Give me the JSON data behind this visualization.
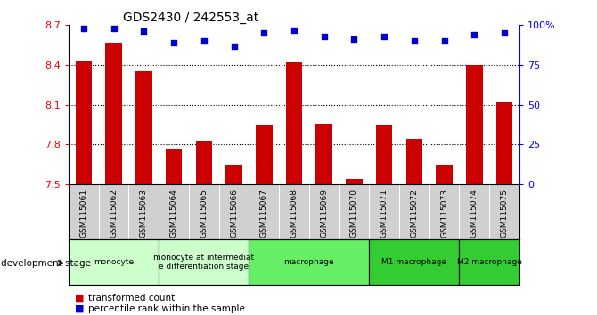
{
  "title": "GDS2430 / 242553_at",
  "samples": [
    "GSM115061",
    "GSM115062",
    "GSM115063",
    "GSM115064",
    "GSM115065",
    "GSM115066",
    "GSM115067",
    "GSM115068",
    "GSM115069",
    "GSM115070",
    "GSM115071",
    "GSM115072",
    "GSM115073",
    "GSM115074",
    "GSM115075"
  ],
  "bar_values": [
    8.43,
    8.57,
    8.35,
    7.76,
    7.82,
    7.65,
    7.95,
    8.42,
    7.96,
    7.54,
    7.95,
    7.84,
    7.65,
    8.4,
    8.12
  ],
  "percentile_values": [
    98,
    98,
    96,
    89,
    90,
    87,
    95,
    97,
    93,
    91,
    93,
    90,
    90,
    94,
    95
  ],
  "bar_color": "#CC0000",
  "dot_color": "#0000CC",
  "ylim_left": [
    7.5,
    8.7
  ],
  "ylim_right": [
    0,
    100
  ],
  "yticks_left": [
    7.5,
    7.8,
    8.1,
    8.4,
    8.7
  ],
  "yticks_right": [
    0,
    25,
    50,
    75,
    100
  ],
  "ytick_labels_right": [
    "0",
    "25",
    "50",
    "75",
    "100%"
  ],
  "grid_values": [
    7.8,
    8.1,
    8.4
  ],
  "bar_bottom": 7.5,
  "group_spans": [
    {
      "start": 0,
      "end": 2,
      "label": "monocyte",
      "color": "#ccffcc"
    },
    {
      "start": 3,
      "end": 5,
      "label": "monocyte at intermediat\ne differentiation stage",
      "color": "#ccffcc"
    },
    {
      "start": 6,
      "end": 9,
      "label": "macrophage",
      "color": "#66ee66"
    },
    {
      "start": 10,
      "end": 12,
      "label": "M1 macrophage",
      "color": "#33cc33"
    },
    {
      "start": 13,
      "end": 14,
      "label": "M2 macrophage",
      "color": "#33cc33"
    }
  ]
}
